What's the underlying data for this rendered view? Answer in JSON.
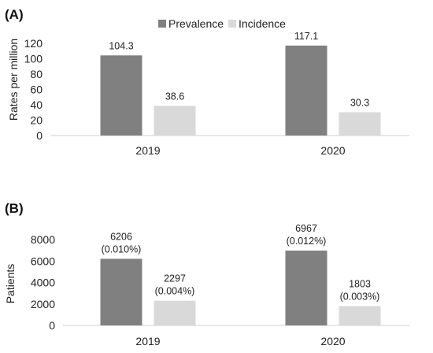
{
  "chart_data": [
    {
      "type": "bar",
      "panel_label": "(A)",
      "categories": [
        "2019",
        "2020"
      ],
      "series": [
        {
          "name": "Prevalence",
          "values": [
            104.3,
            117.1
          ],
          "labels": [
            [
              "104.3"
            ],
            [
              "117.1"
            ]
          ],
          "color": "#808080"
        },
        {
          "name": "Incidence",
          "values": [
            38.6,
            30.3
          ],
          "labels": [
            [
              "38.6"
            ],
            [
              "30.3"
            ]
          ],
          "color": "#d9d9d9"
        }
      ],
      "ylabel": "Rates per million",
      "yticks": [
        "0",
        "20",
        "40",
        "60",
        "80",
        "100",
        "120"
      ],
      "ylim": [
        0,
        120
      ],
      "legend": "top-center",
      "grid": false
    },
    {
      "type": "bar",
      "panel_label": "(B)",
      "categories": [
        "2019",
        "2020"
      ],
      "series": [
        {
          "name": "Prevalence",
          "values": [
            6206,
            6967
          ],
          "labels": [
            [
              "6206",
              "(0.010%)"
            ],
            [
              "6967",
              "(0.012%)"
            ]
          ],
          "color": "#808080"
        },
        {
          "name": "Incidence",
          "values": [
            2297,
            1803
          ],
          "labels": [
            [
              "2297",
              "(0.004%)"
            ],
            [
              "1803",
              "(0.003%)"
            ]
          ],
          "color": "#d9d9d9"
        }
      ],
      "ylabel": "Patients",
      "yticks": [
        "0",
        "2000",
        "4000",
        "6000",
        "8000"
      ],
      "ylim": [
        0,
        8000
      ],
      "legend": "none",
      "grid": false
    }
  ]
}
